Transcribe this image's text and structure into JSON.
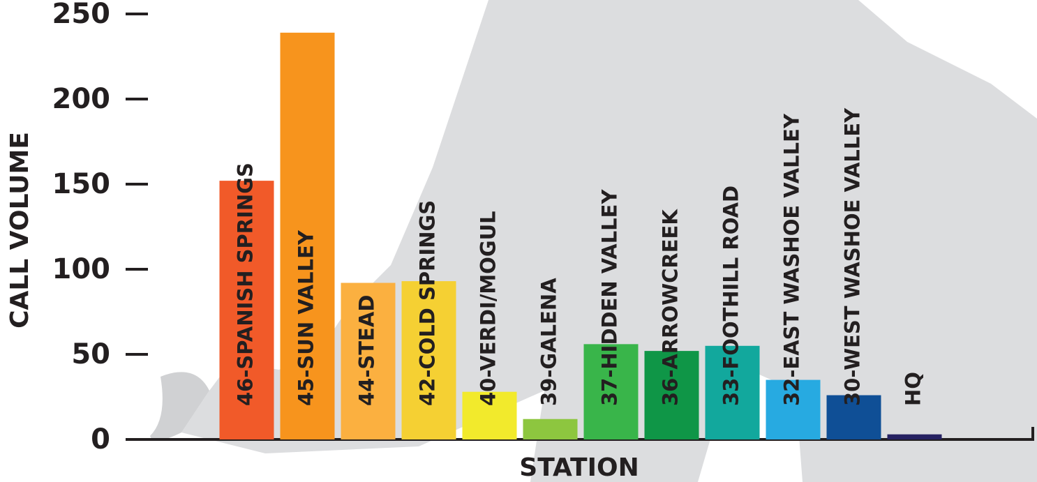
{
  "chart_data": {
    "type": "bar",
    "x_label": "STATION",
    "y_label": "CALL VOLUME",
    "categories": [
      "46-SPANISH SPRINGS",
      "45-SUN VALLEY",
      "44-STEAD",
      "42-COLD SPRINGS",
      "40-VERDI/MOGUL",
      "39-GALENA",
      "37-HIDDEN VALLEY",
      "36-ARROWCREEK",
      "33-FOOTHILL ROAD",
      "32-EAST WASHOE VALLEY",
      "30-WEST WASHOE VALLEY",
      "HQ"
    ],
    "values": [
      152,
      239,
      92,
      93,
      28,
      12,
      56,
      52,
      55,
      35,
      26,
      3
    ],
    "colors": [
      "#f15a29",
      "#f7941d",
      "#fbb040",
      "#f5d033",
      "#f2ea2c",
      "#8dc63f",
      "#39b54a",
      "#0f9647",
      "#12a89d",
      "#27aae1",
      "#0f4f96",
      "#262262"
    ],
    "ylim": [
      0,
      250
    ],
    "yticks": [
      0,
      50,
      100,
      150,
      200,
      250
    ]
  }
}
